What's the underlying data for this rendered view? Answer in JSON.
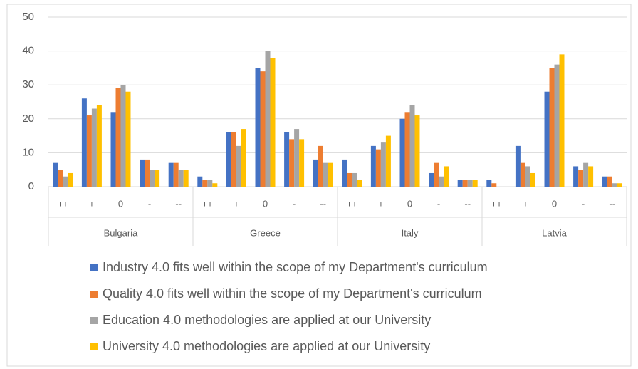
{
  "chart_data": {
    "type": "bar",
    "category_groups": [
      {
        "name": "Bulgaria",
        "categories": [
          "++",
          "+",
          "0",
          "-",
          "--"
        ]
      },
      {
        "name": "Greece",
        "categories": [
          "++",
          "+",
          "0",
          "-",
          "--"
        ]
      },
      {
        "name": "Italy",
        "categories": [
          "++",
          "+",
          "0",
          "-",
          "--"
        ]
      },
      {
        "name": "Latvia",
        "categories": [
          "++",
          "+",
          "0",
          "-",
          "--"
        ]
      }
    ],
    "series": [
      {
        "name": "Industry 4.0 fits well within the scope of my Department's curriculum",
        "color": "#4472c4",
        "values": [
          7,
          26,
          22,
          8,
          7,
          3,
          16,
          35,
          16,
          8,
          8,
          12,
          20,
          4,
          2,
          2,
          12,
          28,
          6,
          3
        ]
      },
      {
        "name": "Quality 4.0 fits well within the scope of my Department's curriculum",
        "color": "#ed7d31",
        "values": [
          5,
          21,
          29,
          8,
          7,
          2,
          16,
          34,
          14,
          12,
          4,
          11,
          22,
          7,
          2,
          1,
          7,
          35,
          5,
          3
        ]
      },
      {
        "name": "Education 4.0 methodologies are applied at our University",
        "color": "#a5a5a5",
        "values": [
          3,
          23,
          30,
          5,
          5,
          2,
          12,
          40,
          17,
          7,
          4,
          13,
          24,
          3,
          2,
          0,
          6,
          36,
          7,
          1
        ]
      },
      {
        "name": "University 4.0 methodologies are applied at our University",
        "color": "#ffc000",
        "values": [
          4,
          24,
          28,
          5,
          5,
          1,
          17,
          38,
          14,
          7,
          2,
          15,
          21,
          6,
          2,
          0,
          4,
          39,
          6,
          1
        ]
      }
    ],
    "ylim": [
      0,
      50
    ],
    "yticks": [
      0,
      10,
      20,
      30,
      40,
      50
    ],
    "grid": true,
    "legend": "bottom"
  }
}
